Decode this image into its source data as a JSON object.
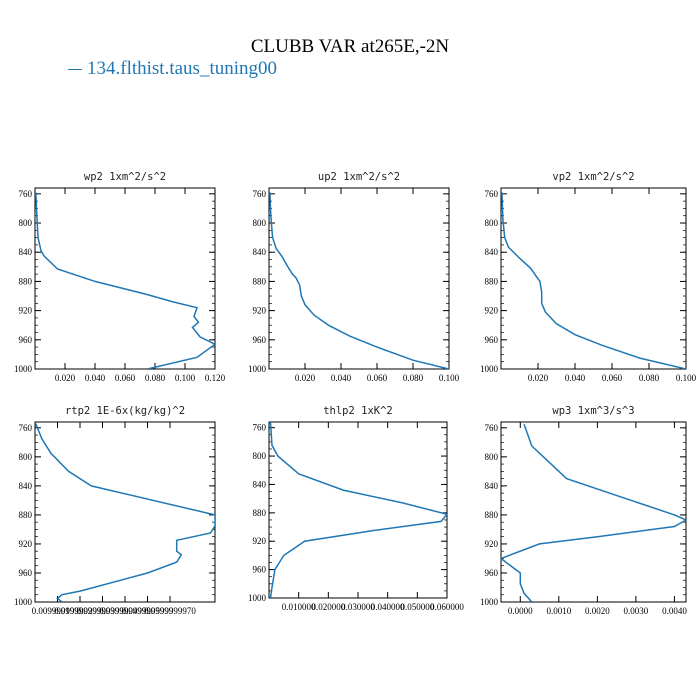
{
  "title": "CLUBB VAR at265E,-2N",
  "legend": {
    "label": "134.flthist.taus_tuning00",
    "color": "#1f77b4"
  },
  "chart_data": [
    {
      "type": "line",
      "title": "wp2  1xm^2/s^2",
      "xlim": [
        0.0,
        0.12
      ],
      "ylim": [
        1000,
        752
      ],
      "y_inverted": true,
      "xticks": [
        0.02,
        0.04,
        0.06,
        0.08,
        0.1,
        0.12
      ],
      "xtick_labels": [
        "0.020",
        "0.040",
        "0.060",
        "0.080",
        "0.100",
        "0.120"
      ],
      "yticks": [
        760,
        800,
        840,
        880,
        920,
        960,
        1000
      ],
      "series": [
        {
          "color": "#1f77b4",
          "x": [
            0.0005,
            0.001,
            0.002,
            0.004,
            0.006,
            0.015,
            0.04,
            0.075,
            0.092,
            0.108,
            0.106,
            0.109,
            0.105,
            0.11,
            0.12,
            0.108,
            0.075
          ],
          "y": [
            758,
            780,
            820,
            838,
            845,
            863,
            880,
            898,
            908,
            916,
            928,
            936,
            943,
            956,
            966,
            984,
            1000
          ]
        }
      ]
    },
    {
      "type": "line",
      "title": "up2  1xm^2/s^2",
      "xlim": [
        0.0,
        0.1
      ],
      "ylim": [
        1000,
        752
      ],
      "y_inverted": true,
      "xticks": [
        0.02,
        0.04,
        0.06,
        0.08,
        0.1
      ],
      "xtick_labels": [
        "0.020",
        "0.040",
        "0.060",
        "0.080",
        "0.100"
      ],
      "yticks": [
        760,
        800,
        840,
        880,
        920,
        960,
        1000
      ],
      "series": [
        {
          "color": "#1f77b4",
          "x": [
            0.0005,
            0.001,
            0.002,
            0.004,
            0.007,
            0.01,
            0.013,
            0.015,
            0.017,
            0.018,
            0.02,
            0.025,
            0.033,
            0.045,
            0.06,
            0.08,
            0.1
          ],
          "y": [
            758,
            790,
            820,
            835,
            845,
            858,
            870,
            875,
            885,
            900,
            912,
            926,
            940,
            955,
            970,
            988,
            1000
          ]
        }
      ]
    },
    {
      "type": "line",
      "title": "vp2  1xm^2/s^2",
      "xlim": [
        0.0,
        0.1
      ],
      "ylim": [
        1000,
        752
      ],
      "y_inverted": true,
      "xticks": [
        0.02,
        0.04,
        0.06,
        0.08,
        0.1
      ],
      "xtick_labels": [
        "0.020",
        "0.040",
        "0.060",
        "0.080",
        "0.100"
      ],
      "yticks": [
        760,
        800,
        840,
        880,
        920,
        960,
        1000
      ],
      "series": [
        {
          "color": "#1f77b4",
          "x": [
            0.0005,
            0.001,
            0.002,
            0.004,
            0.01,
            0.016,
            0.021,
            0.022,
            0.022,
            0.024,
            0.03,
            0.04,
            0.055,
            0.075,
            0.1
          ],
          "y": [
            758,
            795,
            820,
            833,
            848,
            862,
            880,
            895,
            910,
            922,
            938,
            953,
            968,
            985,
            1000
          ]
        }
      ]
    },
    {
      "type": "line",
      "title": "rtp2  1E-6x(kg/kg)^2",
      "xlim": [
        0.9999964,
        0.9999972
      ],
      "ylim": [
        1000,
        752
      ],
      "y_inverted": true,
      "xticks": [
        0.9999965,
        0.9999966,
        0.9999967,
        0.9999968,
        0.9999969,
        0.999997
      ],
      "xtick_labels": [
        "0.0099999999",
        "0.0199999999",
        "0.0299999999",
        "0.0399999999",
        "0.0499999999",
        "0.0599999970"
      ],
      "yticks": [
        760,
        800,
        840,
        880,
        920,
        960,
        1000
      ],
      "series": [
        {
          "color": "#1f77b4",
          "x": [
            0.9999964,
            0.99999643,
            0.99999647,
            0.99999655,
            0.99999665,
            0.9999972,
            0.9999972,
            0.99999718,
            0.99999703,
            0.99999703,
            0.99999705,
            0.99999703,
            0.9999969,
            0.9999966,
            0.99999652,
            0.9999965,
            0.99999652
          ],
          "y": [
            752,
            775,
            795,
            820,
            840,
            880,
            895,
            905,
            915,
            930,
            935,
            945,
            960,
            985,
            990,
            995,
            1000
          ]
        }
      ]
    },
    {
      "type": "line",
      "title": "thlp2  1xK^2",
      "xlim": [
        0.0,
        0.06
      ],
      "ylim": [
        1000,
        752
      ],
      "y_inverted": true,
      "xticks": [
        0.01,
        0.02,
        0.03,
        0.04,
        0.05,
        0.06
      ],
      "xtick_labels": [
        "0.010000",
        "0.020000",
        "0.030000",
        "0.040000",
        "0.050000",
        "0.060000"
      ],
      "yticks": [
        760,
        800,
        840,
        880,
        920,
        960,
        1000
      ],
      "series": [
        {
          "color": "#1f77b4",
          "x": [
            0.0005,
            0.001,
            0.003,
            0.01,
            0.025,
            0.045,
            0.06,
            0.058,
            0.035,
            0.012,
            0.005,
            0.002,
            0.001,
            0.0005
          ],
          "y": [
            752,
            785,
            800,
            825,
            848,
            866,
            882,
            892,
            905,
            920,
            940,
            960,
            985,
            1000
          ]
        }
      ]
    },
    {
      "type": "line",
      "title": "wp3  1xm^3/s^3",
      "xlim": [
        -0.0005,
        0.0043
      ],
      "ylim": [
        1000,
        752
      ],
      "y_inverted": true,
      "xticks": [
        0.0,
        0.001,
        0.002,
        0.003,
        0.004
      ],
      "xtick_labels": [
        "0.0000",
        "0.0010",
        "0.0020",
        "0.0030",
        "0.0040"
      ],
      "yticks": [
        760,
        800,
        840,
        880,
        920,
        960,
        1000
      ],
      "series": [
        {
          "color": "#1f77b4",
          "x": [
            0.0001,
            0.0003,
            0.0006,
            0.0012,
            0.0026,
            0.004,
            0.0043,
            0.004,
            0.002,
            0.0005,
            -0.0005,
            0.0,
            0.0,
            0.0001,
            0.0003
          ],
          "y": [
            755,
            785,
            800,
            830,
            855,
            880,
            887,
            896,
            910,
            920,
            940,
            960,
            975,
            988,
            1000
          ]
        }
      ]
    }
  ]
}
